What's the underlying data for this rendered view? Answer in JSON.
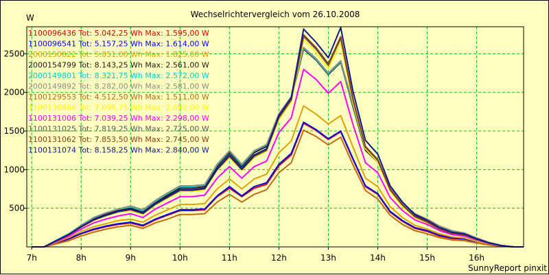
{
  "chart_data": {
    "type": "line",
    "title": "Wechselrichtervergleich vom 26.10.2008",
    "ylabel": "W",
    "footer": "SunnyReport pinxit",
    "ylim": [
      0,
      2850
    ],
    "xlim": [
      6.9,
      16.95
    ],
    "grid": true,
    "legend_position": "top-left",
    "x_ticks": [
      7,
      8,
      9,
      10,
      11,
      12,
      13,
      14,
      15,
      16
    ],
    "x_tick_labels": [
      "7h",
      "8h",
      "9h",
      "10h",
      "11h",
      "12h",
      "13h",
      "14h",
      "15h",
      "16h"
    ],
    "y_ticks": [
      500,
      1000,
      1500,
      2000,
      2500
    ],
    "y_tick_labels": [
      "500",
      "1000",
      "1500",
      "2000",
      "2500"
    ],
    "x": [
      7.0,
      7.25,
      7.5,
      7.75,
      8.0,
      8.25,
      8.5,
      8.75,
      9.0,
      9.25,
      9.5,
      9.75,
      10.0,
      10.25,
      10.5,
      10.75,
      11.0,
      11.25,
      11.5,
      11.75,
      12.0,
      12.25,
      12.5,
      12.75,
      13.0,
      13.25,
      13.5,
      13.75,
      14.0,
      14.25,
      14.5,
      14.75,
      15.0,
      15.25,
      15.5,
      15.75,
      16.0,
      16.25,
      16.5,
      16.75,
      16.95
    ],
    "series": [
      {
        "name": "1100096436",
        "legend_text": "1100096436 Tot: 5.042,25 Wh Max: 1.595,00 W",
        "color": "#dd0000",
        "values": [
          0,
          0,
          50,
          100,
          170,
          220,
          260,
          290,
          310,
          270,
          350,
          410,
          470,
          470,
          480,
          650,
          760,
          650,
          760,
          810,
          1050,
          1190,
          1600,
          1510,
          1390,
          1490,
          1130,
          780,
          680,
          450,
          330,
          240,
          200,
          140,
          110,
          100,
          60,
          30,
          10,
          0,
          0
        ]
      },
      {
        "name": "1100096541",
        "legend_text": "1100096541 Tot: 5.157,25 Wh Max: 1.614,00 W",
        "color": "#0000ee",
        "values": [
          0,
          0,
          55,
          105,
          175,
          230,
          270,
          300,
          320,
          280,
          360,
          420,
          480,
          480,
          490,
          660,
          780,
          660,
          780,
          830,
          1070,
          1210,
          1614,
          1520,
          1400,
          1500,
          1140,
          790,
          690,
          460,
          340,
          250,
          210,
          150,
          115,
          105,
          65,
          35,
          12,
          0,
          0
        ]
      },
      {
        "name": "2000150822",
        "legend_text": "2000150822 Tot: 5.851,00 Wh Max: 1.825,00 W",
        "color": "#e0a000",
        "values": [
          0,
          0,
          60,
          120,
          200,
          260,
          300,
          340,
          360,
          320,
          410,
          480,
          550,
          550,
          560,
          750,
          880,
          750,
          880,
          940,
          1220,
          1370,
          1825,
          1720,
          1590,
          1700,
          1290,
          890,
          780,
          520,
          380,
          280,
          230,
          170,
          130,
          115,
          70,
          35,
          12,
          0,
          0
        ]
      },
      {
        "name": "2000154799",
        "legend_text": "2000154799 Tot: 8.143,25 Wh Max: 2.561,00 W",
        "color": "#1a1a1a",
        "values": [
          0,
          0,
          80,
          160,
          270,
          360,
          420,
          470,
          500,
          450,
          570,
          670,
          760,
          760,
          780,
          1040,
          1220,
          1040,
          1220,
          1300,
          1700,
          1920,
          2561,
          2420,
          2230,
          2390,
          1810,
          1250,
          1100,
          730,
          540,
          400,
          330,
          240,
          180,
          160,
          100,
          50,
          15,
          0,
          0
        ]
      },
      {
        "name": "2000149801",
        "legend_text": "2000149801 Tot: 8.321,75 Wh Max: 2.572,00 W",
        "color": "#00cccc",
        "values": [
          0,
          0,
          85,
          170,
          280,
          380,
          440,
          490,
          520,
          470,
          590,
          690,
          780,
          780,
          800,
          1060,
          1240,
          1060,
          1240,
          1320,
          1720,
          1940,
          2572,
          2430,
          2240,
          2400,
          1830,
          1270,
          1120,
          750,
          560,
          420,
          350,
          260,
          200,
          170,
          110,
          55,
          18,
          0,
          0
        ]
      },
      {
        "name": "2000149892",
        "legend_text": "2000149892 Tot: 8.282,00 Wh Max: 2.581,00 W",
        "color": "#8a8a8a",
        "values": [
          0,
          0,
          82,
          165,
          278,
          375,
          440,
          490,
          530,
          480,
          600,
          700,
          790,
          790,
          805,
          1070,
          1245,
          1070,
          1245,
          1325,
          1725,
          1945,
          2581,
          2440,
          2250,
          2410,
          1840,
          1280,
          1130,
          760,
          570,
          430,
          360,
          270,
          210,
          180,
          115,
          58,
          20,
          0,
          0
        ]
      },
      {
        "name": "1100129553",
        "legend_text": "1100129553 Tot: 4.512,50 Wh Max: 1.511,00 W",
        "color": "#c06a10",
        "values": [
          0,
          0,
          40,
          80,
          140,
          190,
          230,
          260,
          280,
          240,
          310,
          360,
          420,
          420,
          430,
          580,
          680,
          580,
          680,
          740,
          960,
          1090,
          1511,
          1430,
          1320,
          1420,
          1060,
          730,
          620,
          410,
          290,
          210,
          170,
          120,
          90,
          80,
          50,
          25,
          8,
          0,
          0
        ]
      },
      {
        "name": "1100130866",
        "legend_text": "1100130866 Tot: 7.699,75 Wh Max: 2.682,00 W",
        "color": "#ffff00",
        "values": [
          0,
          0,
          75,
          150,
          250,
          340,
          400,
          450,
          470,
          420,
          540,
          630,
          720,
          720,
          740,
          990,
          1160,
          990,
          1160,
          1240,
          1650,
          1880,
          2682,
          2520,
          2310,
          2640,
          1870,
          1270,
          1100,
          720,
          520,
          380,
          310,
          220,
          170,
          150,
          95,
          45,
          14,
          0,
          0
        ]
      },
      {
        "name": "1100131006",
        "legend_text": "1100131006 Tot: 7.039,25 Wh Max: 2.298,00 W",
        "color": "#ff00ff",
        "values": [
          0,
          0,
          70,
          140,
          230,
          310,
          360,
          400,
          430,
          380,
          490,
          570,
          650,
          650,
          670,
          890,
          1040,
          890,
          1040,
          1110,
          1480,
          1670,
          2298,
          2170,
          1990,
          2140,
          1580,
          1090,
          960,
          640,
          470,
          350,
          290,
          210,
          160,
          140,
          90,
          45,
          14,
          0,
          0
        ]
      },
      {
        "name": "1100131025",
        "legend_text": "1100131025 Tot: 7.819,25 Wh Max: 2.725,00 W",
        "color": "#5a5a5a",
        "values": [
          0,
          0,
          78,
          155,
          255,
          345,
          405,
          455,
          480,
          430,
          550,
          640,
          730,
          730,
          750,
          1000,
          1170,
          1000,
          1170,
          1250,
          1670,
          1900,
          2725,
          2560,
          2350,
          2700,
          1900,
          1290,
          1120,
          740,
          540,
          390,
          320,
          230,
          175,
          155,
          98,
          48,
          15,
          0,
          0
        ]
      },
      {
        "name": "1100131062",
        "legend_text": "1100131062 Tot: 7.853,50 Wh Max: 2.745,00 W",
        "color": "#8b3a1a",
        "values": [
          0,
          0,
          80,
          158,
          258,
          348,
          408,
          458,
          485,
          435,
          555,
          645,
          735,
          735,
          755,
          1005,
          1180,
          1005,
          1180,
          1260,
          1680,
          1910,
          2745,
          2580,
          2370,
          2720,
          1910,
          1300,
          1130,
          745,
          545,
          395,
          325,
          235,
          178,
          158,
          100,
          50,
          16,
          0,
          0
        ]
      },
      {
        "name": "1100131074",
        "legend_text": "1100131074 Tot: 8.158,25 Wh Max: 2.840,00 W",
        "color": "#0a1a8a",
        "values": [
          0,
          0,
          82,
          162,
          262,
          352,
          412,
          462,
          490,
          440,
          560,
          650,
          740,
          740,
          760,
          1010,
          1190,
          1010,
          1190,
          1270,
          1700,
          1930,
          2820,
          2650,
          2450,
          2840,
          2010,
          1380,
          1200,
          790,
          580,
          420,
          345,
          250,
          190,
          168,
          105,
          52,
          17,
          0,
          0
        ]
      }
    ]
  }
}
